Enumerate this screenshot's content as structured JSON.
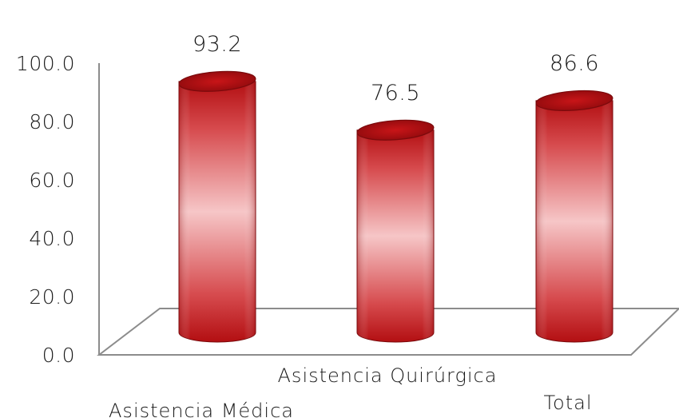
{
  "chart_data": {
    "type": "bar",
    "style": "3d-cylinder",
    "categories": [
      "Asistencia Médica",
      "Asistencia Quirúrgica",
      "Total"
    ],
    "values": [
      93.2,
      76.5,
      86.6
    ],
    "value_labels": [
      "93.2",
      "76.5",
      "86.6"
    ],
    "y_ticks": [
      "0.0",
      "20.0",
      "40.0",
      "60.0",
      "80.0",
      "100.0"
    ],
    "ylim": [
      0,
      100
    ],
    "title": "",
    "xlabel": "",
    "ylabel": "",
    "grid": false,
    "legend": "none",
    "colors": {
      "bar_dark": "#b30f12",
      "bar_mid": "#d64a4d",
      "bar_light": "#f6c6c7",
      "bar_top": "#a80c10",
      "floor_line": "#8c8c8c",
      "text": "#1a1a1a"
    }
  }
}
